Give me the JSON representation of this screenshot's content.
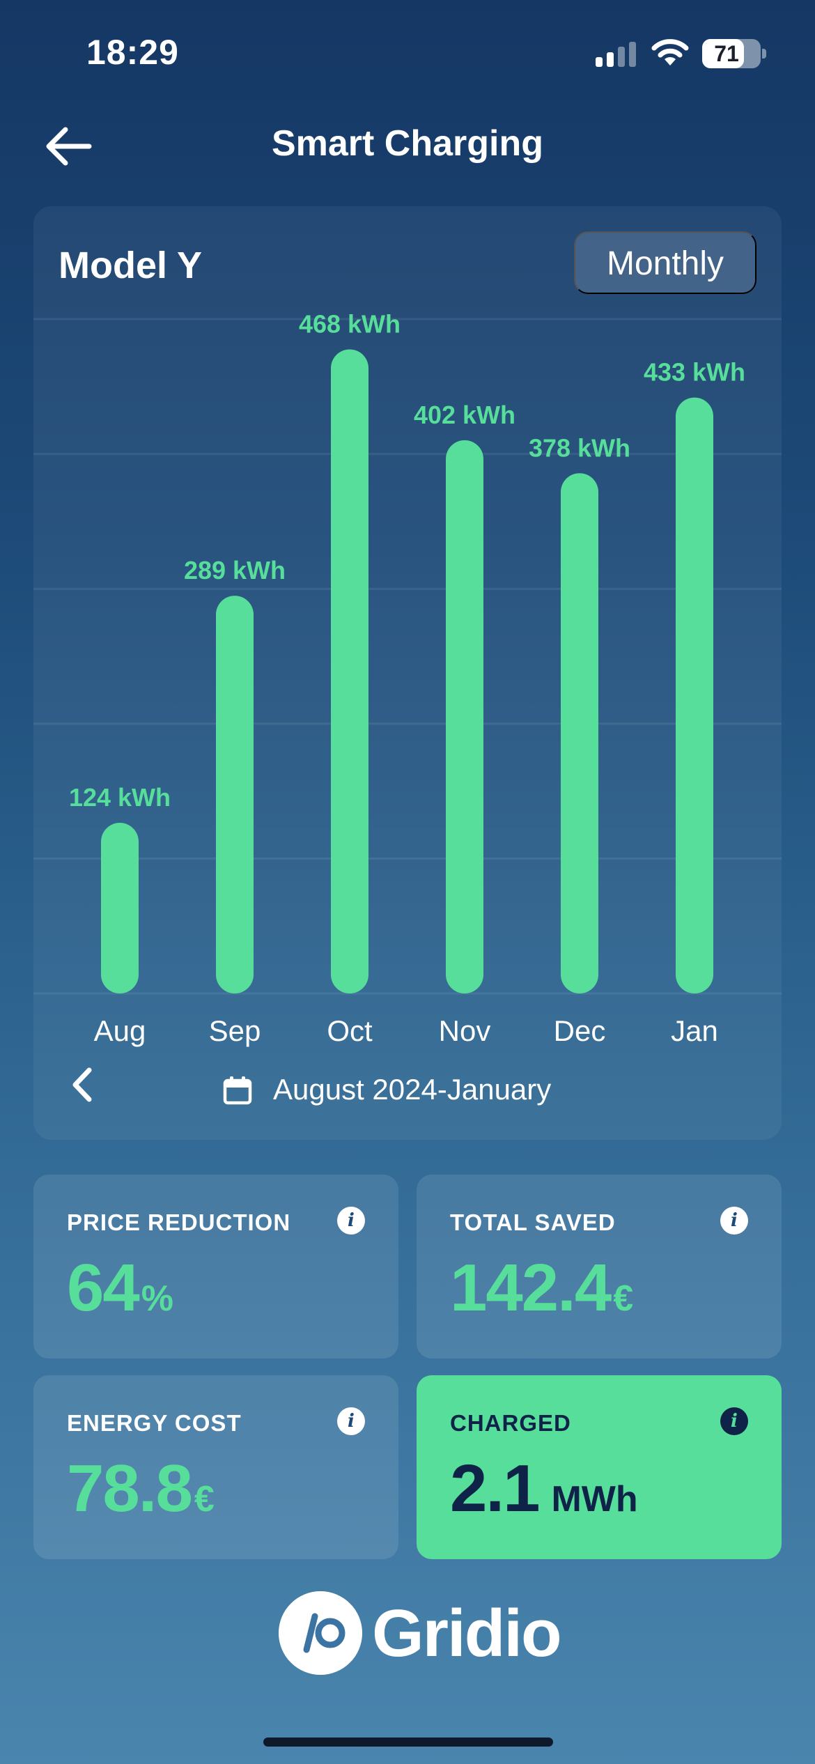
{
  "status_bar": {
    "time": "18:29",
    "battery_level": "71",
    "battery_fraction": 0.71,
    "signal_bars_active": 2,
    "signal_bars_total": 4
  },
  "header": {
    "title": "Smart Charging",
    "back_icon": "arrow-left-icon"
  },
  "card": {
    "vehicle": "Model Y",
    "period_toggle": "Monthly",
    "date_range": "August 2024-January",
    "prev_icon": "chevron-left-icon",
    "calendar_icon": "calendar-icon"
  },
  "chart_data": {
    "type": "bar",
    "categories": [
      "Aug",
      "Sep",
      "Oct",
      "Nov",
      "Dec",
      "Jan"
    ],
    "values": [
      124,
      289,
      468,
      402,
      378,
      433
    ],
    "value_labels": [
      "124 kWh",
      "289 kWh",
      "468 kWh",
      "402 kWh",
      "378 kWh",
      "433 kWh"
    ],
    "unit": "kWh",
    "ylim": [
      0,
      490
    ],
    "grid": true,
    "bar_color": "#57de9a"
  },
  "stats": [
    {
      "label": "PRICE REDUCTION",
      "value": "64",
      "unit": "%",
      "info_icon": "info-icon"
    },
    {
      "label": "TOTAL SAVED",
      "value": "142.4",
      "unit": "€",
      "info_icon": "info-icon"
    },
    {
      "label": "ENERGY COST",
      "value": "78.8",
      "unit": "€",
      "info_icon": "info-icon"
    },
    {
      "label": "CHARGED",
      "value": "2.1",
      "unit": "MWh",
      "info_icon": "info-icon",
      "highlighted": true
    }
  ],
  "logo": {
    "text": "Gridio"
  },
  "colors": {
    "accent": "#57de9a",
    "dark_text": "#0f2348",
    "background_top": "#153764",
    "background_bottom": "#4a85ae"
  }
}
